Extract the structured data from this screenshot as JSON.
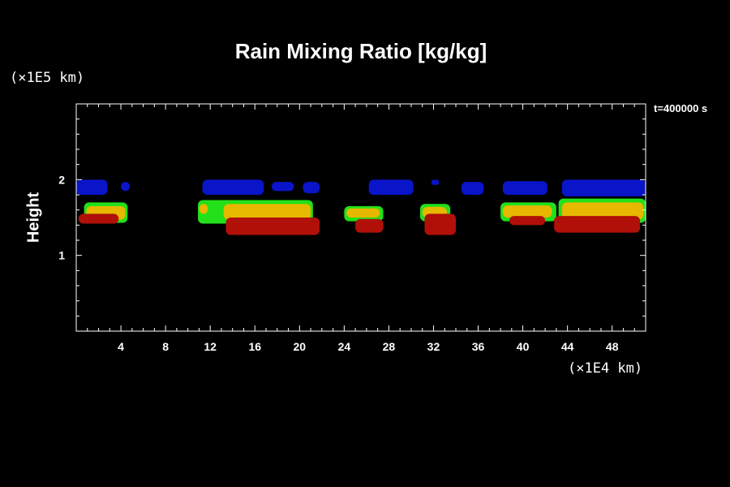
{
  "colors": {
    "background": "#000000",
    "axis": "#ffffff",
    "level_blue": "#0a14c8",
    "level_green": "#22e01a",
    "level_yellow": "#e6b800",
    "level_orange": "#e0a000",
    "level_red": "#b01008"
  },
  "chart_data": {
    "type": "heatmap",
    "title": "Rain Mixing Ratio [kg/kg]",
    "xlabel": "",
    "ylabel": "Height",
    "x_unit": "(×1E5 km)",
    "y_unit": "(×1E4 km)",
    "time_label": "t=400000 s",
    "xlim": [
      0,
      51
    ],
    "ylim": [
      0,
      3
    ],
    "xticks": [
      4,
      8,
      12,
      16,
      20,
      24,
      28,
      32,
      36,
      40,
      44,
      48
    ],
    "yticks": [
      1,
      2
    ],
    "grid": false,
    "regions": [
      {
        "level": "blue",
        "x": [
          0,
          2.8
        ],
        "y": [
          1.8,
          2.0
        ]
      },
      {
        "level": "blue",
        "x": [
          4.0,
          4.8
        ],
        "y": [
          1.85,
          1.97
        ]
      },
      {
        "level": "blue",
        "x": [
          11.3,
          16.8
        ],
        "y": [
          1.8,
          2.0
        ]
      },
      {
        "level": "blue",
        "x": [
          17.5,
          19.5
        ],
        "y": [
          1.85,
          1.97
        ]
      },
      {
        "level": "blue",
        "x": [
          20.3,
          21.8
        ],
        "y": [
          1.82,
          1.97
        ]
      },
      {
        "level": "blue",
        "x": [
          26.2,
          30.2
        ],
        "y": [
          1.8,
          2.0
        ]
      },
      {
        "level": "blue",
        "x": [
          31.8,
          32.5
        ],
        "y": [
          1.93,
          2.0
        ]
      },
      {
        "level": "blue",
        "x": [
          34.5,
          36.5
        ],
        "y": [
          1.8,
          1.97
        ]
      },
      {
        "level": "blue",
        "x": [
          38.2,
          42.2
        ],
        "y": [
          1.8,
          1.98
        ]
      },
      {
        "level": "blue",
        "x": [
          43.5,
          51.0
        ],
        "y": [
          1.78,
          2.0
        ]
      },
      {
        "level": "green",
        "x": [
          0.7,
          4.6
        ],
        "y": [
          1.43,
          1.7
        ]
      },
      {
        "level": "green",
        "x": [
          10.9,
          21.2
        ],
        "y": [
          1.42,
          1.73
        ]
      },
      {
        "level": "green",
        "x": [
          24.0,
          27.5
        ],
        "y": [
          1.45,
          1.65
        ]
      },
      {
        "level": "green",
        "x": [
          30.8,
          33.5
        ],
        "y": [
          1.45,
          1.68
        ]
      },
      {
        "level": "green",
        "x": [
          38.0,
          43.0
        ],
        "y": [
          1.45,
          1.7
        ]
      },
      {
        "level": "green",
        "x": [
          43.2,
          51.0
        ],
        "y": [
          1.43,
          1.75
        ]
      },
      {
        "level": "yellow",
        "x": [
          0.9,
          4.4
        ],
        "y": [
          1.47,
          1.65
        ]
      },
      {
        "level": "yellow",
        "x": [
          11.0,
          11.8
        ],
        "y": [
          1.55,
          1.68
        ]
      },
      {
        "level": "yellow",
        "x": [
          13.2,
          21.0
        ],
        "y": [
          1.47,
          1.68
        ]
      },
      {
        "level": "yellow",
        "x": [
          24.2,
          27.2
        ],
        "y": [
          1.5,
          1.62
        ]
      },
      {
        "level": "yellow",
        "x": [
          31.0,
          33.2
        ],
        "y": [
          1.5,
          1.64
        ]
      },
      {
        "level": "yellow",
        "x": [
          38.2,
          42.6
        ],
        "y": [
          1.5,
          1.66
        ]
      },
      {
        "level": "yellow",
        "x": [
          43.5,
          50.8
        ],
        "y": [
          1.47,
          1.7
        ]
      },
      {
        "level": "red",
        "x": [
          0.2,
          3.8
        ],
        "y": [
          1.42,
          1.55
        ]
      },
      {
        "level": "red",
        "x": [
          13.4,
          21.8
        ],
        "y": [
          1.27,
          1.5
        ]
      },
      {
        "level": "red",
        "x": [
          25.0,
          27.5
        ],
        "y": [
          1.3,
          1.48
        ]
      },
      {
        "level": "red",
        "x": [
          31.2,
          34.0
        ],
        "y": [
          1.27,
          1.55
        ]
      },
      {
        "level": "red",
        "x": [
          38.8,
          42.0
        ],
        "y": [
          1.4,
          1.52
        ]
      },
      {
        "level": "red",
        "x": [
          42.8,
          50.5
        ],
        "y": [
          1.3,
          1.52
        ]
      }
    ]
  }
}
